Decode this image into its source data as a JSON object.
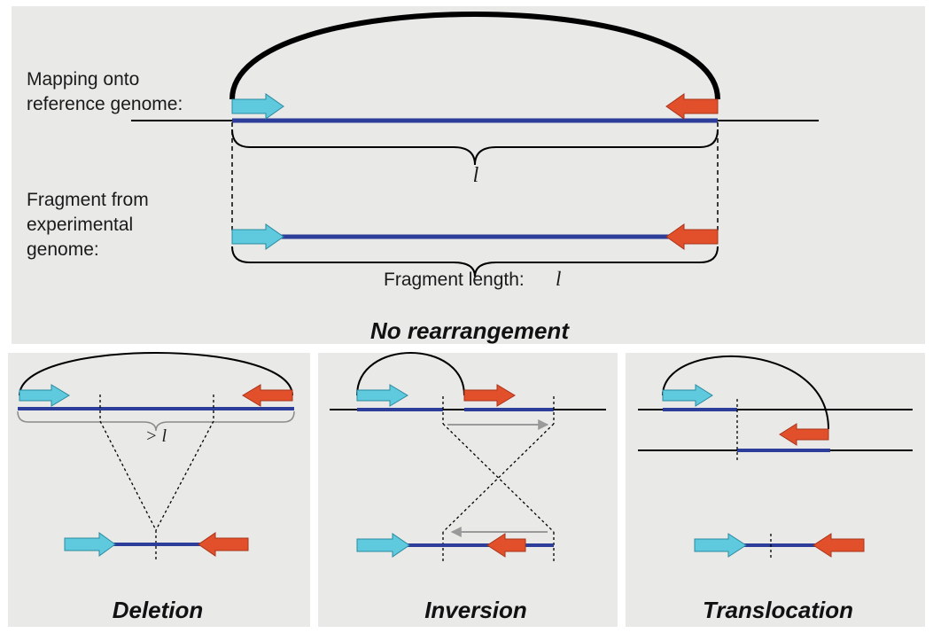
{
  "top_panel": {
    "mapping_label": [
      "Mapping onto",
      "reference genome:"
    ],
    "brace_symbol": "l",
    "fragment_label": [
      "Fragment from",
      "experimental",
      "genome:"
    ],
    "fragment_length_text": "Fragment length:",
    "fragment_length_symbol": "l",
    "title": "No rearrangement"
  },
  "panels": {
    "deletion": {
      "title": "Deletion",
      "span_text": "> l"
    },
    "inversion": {
      "title": "Inversion"
    },
    "translocation": {
      "title": "Translocation"
    }
  },
  "colors": {
    "panel_bg": "#e9e9e7",
    "read_forward": "#5fc9dd",
    "read_reverse": "#e2502b",
    "mapped_segment": "#2c3d9a",
    "genome_line": "#000000",
    "guide_arrow": "#9a9a9a"
  }
}
